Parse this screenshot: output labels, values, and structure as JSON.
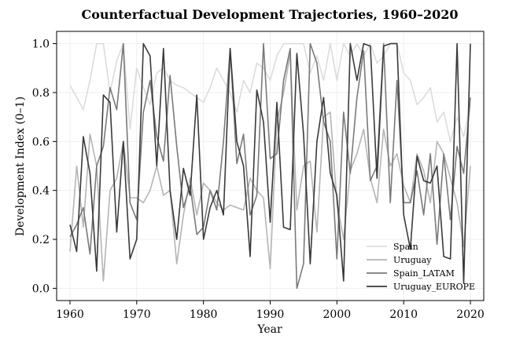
{
  "chart_data": {
    "type": "line",
    "title": "Counterfactual Development Trajectories, 1960–2020",
    "xlabel": "Year",
    "ylabel": "Development Index (0–1)",
    "xlim": [
      1958,
      2022
    ],
    "ylim": [
      -0.05,
      1.05
    ],
    "xticks": [
      1960,
      1970,
      1980,
      1990,
      2000,
      2010,
      2020
    ],
    "yticks": [
      0.0,
      0.2,
      0.4,
      0.6,
      0.8,
      1.0
    ],
    "grid": true,
    "legend_position": "bottom-right",
    "x": [
      1960,
      1961,
      1962,
      1963,
      1964,
      1965,
      1966,
      1967,
      1968,
      1969,
      1970,
      1971,
      1972,
      1973,
      1974,
      1975,
      1976,
      1977,
      1978,
      1979,
      1980,
      1981,
      1982,
      1983,
      1984,
      1985,
      1986,
      1987,
      1988,
      1989,
      1990,
      1991,
      1992,
      1993,
      1994,
      1995,
      1996,
      1997,
      1998,
      1999,
      2000,
      2001,
      2002,
      2003,
      2004,
      2005,
      2006,
      2007,
      2008,
      2009,
      2010,
      2011,
      2012,
      2013,
      2014,
      2015,
      2016,
      2017,
      2018,
      2019,
      2020
    ],
    "series": [
      {
        "name": "Spain",
        "color": "#dcdcdc",
        "values": [
          0.83,
          0.78,
          0.73,
          0.85,
          1.0,
          1.0,
          0.8,
          0.93,
          1.0,
          0.65,
          0.9,
          0.82,
          0.75,
          0.88,
          0.9,
          0.85,
          0.83,
          0.82,
          0.8,
          0.78,
          0.76,
          0.82,
          0.9,
          0.85,
          0.8,
          0.72,
          0.85,
          0.8,
          0.92,
          0.9,
          0.85,
          0.95,
          1.0,
          1.0,
          1.0,
          1.0,
          0.88,
          0.95,
          0.85,
          1.0,
          0.85,
          1.0,
          0.95,
          1.0,
          0.95,
          1.0,
          0.92,
          0.95,
          1.0,
          1.0,
          0.88,
          0.85,
          0.75,
          0.78,
          0.82,
          0.68,
          0.72,
          0.6,
          0.7,
          0.62,
          0.75
        ]
      },
      {
        "name": "Uruguay",
        "color": "#b5b5b5",
        "values": [
          0.15,
          0.5,
          0.25,
          0.63,
          0.5,
          0.03,
          0.4,
          0.45,
          0.6,
          0.37,
          0.37,
          0.35,
          0.4,
          0.5,
          0.38,
          0.4,
          0.1,
          0.3,
          0.45,
          0.3,
          0.43,
          0.4,
          0.35,
          0.32,
          0.34,
          0.33,
          0.32,
          0.45,
          0.4,
          0.37,
          0.08,
          0.68,
          0.8,
          0.96,
          0.32,
          0.5,
          0.52,
          0.23,
          0.7,
          0.72,
          0.35,
          0.2,
          0.48,
          0.55,
          0.65,
          0.45,
          0.35,
          0.65,
          0.5,
          0.55,
          0.42,
          0.35,
          0.55,
          0.48,
          0.35,
          0.6,
          0.55,
          0.45,
          0.35,
          0.17,
          0.5
        ]
      },
      {
        "name": "Spain_LATAM",
        "color": "#7a7a7a",
        "values": [
          0.21,
          0.26,
          0.33,
          0.14,
          0.5,
          0.58,
          0.82,
          0.73,
          1.0,
          0.35,
          0.28,
          0.72,
          0.85,
          0.62,
          0.52,
          0.87,
          0.58,
          0.33,
          0.42,
          0.22,
          0.25,
          0.4,
          0.32,
          0.6,
          0.98,
          0.51,
          0.63,
          0.3,
          0.38,
          1.0,
          0.53,
          0.55,
          0.85,
          0.98,
          0.0,
          0.1,
          1.0,
          0.92,
          0.68,
          0.6,
          0.12,
          0.72,
          0.47,
          0.78,
          0.97,
          0.44,
          0.5,
          1.0,
          0.35,
          0.85,
          0.35,
          0.35,
          0.48,
          0.3,
          0.55,
          0.18,
          0.55,
          0.28,
          0.58,
          0.47,
          0.78
        ]
      },
      {
        "name": "Uruguay_EUROPE",
        "color": "#3a3a3a",
        "values": [
          0.26,
          0.15,
          0.62,
          0.47,
          0.07,
          0.79,
          0.76,
          0.23,
          0.6,
          0.12,
          0.2,
          1.0,
          0.95,
          0.5,
          0.98,
          0.4,
          0.2,
          0.49,
          0.38,
          0.79,
          0.2,
          0.33,
          0.4,
          0.3,
          0.98,
          0.6,
          0.5,
          0.13,
          0.81,
          0.68,
          0.27,
          0.76,
          0.25,
          0.24,
          0.96,
          0.63,
          0.1,
          0.6,
          0.78,
          0.47,
          0.38,
          0.03,
          1.0,
          0.85,
          1.0,
          0.99,
          0.45,
          0.99,
          1.0,
          1.0,
          0.3,
          0.16,
          0.54,
          0.44,
          0.43,
          0.5,
          0.13,
          0.12,
          1.0,
          0.02,
          1.0
        ]
      }
    ]
  }
}
